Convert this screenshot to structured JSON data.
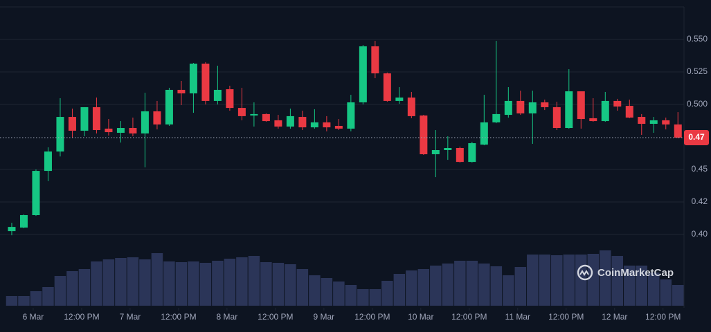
{
  "chart_data": {
    "type": "candlestick",
    "watermark": "CoinMarketCap",
    "colors": {
      "up": "#16c784",
      "down": "#ea3943",
      "volume": "#2b3558"
    },
    "ylim": [
      0.39,
      0.575
    ],
    "yticks": [
      {
        "value": 0.55,
        "label": "0.550"
      },
      0.525,
      {
        "value": 0.5,
        "label": "0.500"
      },
      0.45,
      {
        "value": 0.425,
        "label": "0.42"
      },
      {
        "value": 0.4,
        "label": "0.40"
      }
    ],
    "xlim": [
      -0.97,
      55.5
    ],
    "xticks": [
      {
        "value": 1.77,
        "label": "6 Mar"
      },
      {
        "value": 5.77,
        "label": "12:00 PM"
      },
      {
        "value": 9.77,
        "label": "7 Mar"
      },
      {
        "value": 13.77,
        "label": "12:00 PM"
      },
      {
        "value": 17.77,
        "label": "8 Mar"
      },
      {
        "value": 21.77,
        "label": "12:00 PM"
      },
      {
        "value": 25.77,
        "label": "9 Mar"
      },
      {
        "value": 29.77,
        "label": "12:00 PM"
      },
      {
        "value": 33.77,
        "label": "10 Mar"
      },
      {
        "value": 37.77,
        "label": "12:00 PM"
      },
      {
        "value": 41.77,
        "label": "11 Mar"
      },
      {
        "value": 45.77,
        "label": "12:00 PM"
      },
      {
        "value": 49.77,
        "label": "12 Mar"
      },
      {
        "value": 53.77,
        "label": "12:00 PM"
      }
    ],
    "last_price": {
      "value": 0.4745,
      "label": "0.47"
    },
    "open": [
      0.4026,
      0.4053,
      0.4149,
      0.4489,
      0.4638,
      0.4904,
      0.4798,
      0.4979,
      0.4814,
      0.4782,
      0.4819,
      0.4777,
      0.4947,
      0.4846,
      0.5112,
      0.5085,
      0.5314,
      0.5027,
      0.5117,
      0.4973,
      0.4915,
      0.4926,
      0.4878,
      0.483,
      0.4904,
      0.4824,
      0.4862,
      0.4835,
      0.4814,
      0.5016,
      0.5447,
      0.5239,
      0.5027,
      0.5053,
      0.4915,
      0.4617,
      0.4649,
      0.4665,
      0.4558,
      0.4691,
      0.4862,
      0.492,
      0.5027,
      0.4931,
      0.5016,
      0.4979,
      0.4819,
      0.5101,
      0.4894,
      0.4872,
      0.5027,
      0.4989,
      0.4904,
      0.4851,
      0.4878,
      0.4846
    ],
    "high": [
      0.409,
      0.4154,
      0.45,
      0.467,
      0.5048,
      0.4968,
      0.4979,
      0.5053,
      0.4888,
      0.4872,
      0.4899,
      0.509,
      0.5027,
      0.5128,
      0.5181,
      0.5319,
      0.5325,
      0.5298,
      0.5144,
      0.5128,
      0.5016,
      0.4931,
      0.492,
      0.4968,
      0.4952,
      0.4963,
      0.491,
      0.4888,
      0.5074,
      0.5457,
      0.5489,
      0.5245,
      0.5133,
      0.5096,
      0.492,
      0.4803,
      0.4755,
      0.4676,
      0.4713,
      0.5074,
      0.5489,
      0.5133,
      0.5106,
      0.5106,
      0.5037,
      0.5021,
      0.5271,
      0.5101,
      0.5048,
      0.5096,
      0.5043,
      0.5037,
      0.4926,
      0.4904,
      0.4899,
      0.4941
    ],
    "low": [
      0.3994,
      0.4048,
      0.4143,
      0.441,
      0.46,
      0.4745,
      0.4755,
      0.4777,
      0.4761,
      0.4707,
      0.4755,
      0.4516,
      0.4808,
      0.4835,
      0.4995,
      0.4936,
      0.5,
      0.5,
      0.4952,
      0.4878,
      0.483,
      0.4867,
      0.4814,
      0.4814,
      0.4803,
      0.4814,
      0.4793,
      0.4803,
      0.4793,
      0.5,
      0.5202,
      0.5021,
      0.5005,
      0.4894,
      0.4612,
      0.4441,
      0.4574,
      0.4553,
      0.4553,
      0.4686,
      0.4856,
      0.4899,
      0.492,
      0.4697,
      0.4957,
      0.4803,
      0.4814,
      0.4814,
      0.4867,
      0.4867,
      0.4952,
      0.4894,
      0.4766,
      0.4782,
      0.4808,
      0.474
    ],
    "close": [
      0.4058,
      0.4149,
      0.4489,
      0.4638,
      0.4904,
      0.4798,
      0.4979,
      0.4803,
      0.4787,
      0.4819,
      0.4777,
      0.4947,
      0.4846,
      0.5112,
      0.5085,
      0.5314,
      0.5027,
      0.5112,
      0.4973,
      0.491,
      0.4926,
      0.4872,
      0.483,
      0.491,
      0.4824,
      0.4862,
      0.4824,
      0.4814,
      0.5016,
      0.5447,
      0.5239,
      0.5027,
      0.5053,
      0.491,
      0.4617,
      0.4649,
      0.4665,
      0.4558,
      0.4702,
      0.4862,
      0.4926,
      0.5027,
      0.4931,
      0.5016,
      0.4979,
      0.4819,
      0.5101,
      0.4888,
      0.4872,
      0.5027,
      0.4984,
      0.4899,
      0.4851,
      0.4878,
      0.4846,
      0.4745
    ],
    "volume": [
      14,
      14,
      21,
      27,
      43,
      50,
      53,
      64,
      67,
      69,
      70,
      67,
      76,
      64,
      63,
      64,
      62,
      65,
      68,
      70,
      72,
      63,
      62,
      60,
      53,
      44,
      40,
      35,
      30,
      24,
      24,
      36,
      46,
      51,
      53,
      58,
      61,
      65,
      65,
      61,
      57,
      44,
      56,
      74,
      74,
      73,
      74,
      74,
      75,
      80,
      72,
      58,
      58,
      48,
      38,
      30
    ]
  }
}
